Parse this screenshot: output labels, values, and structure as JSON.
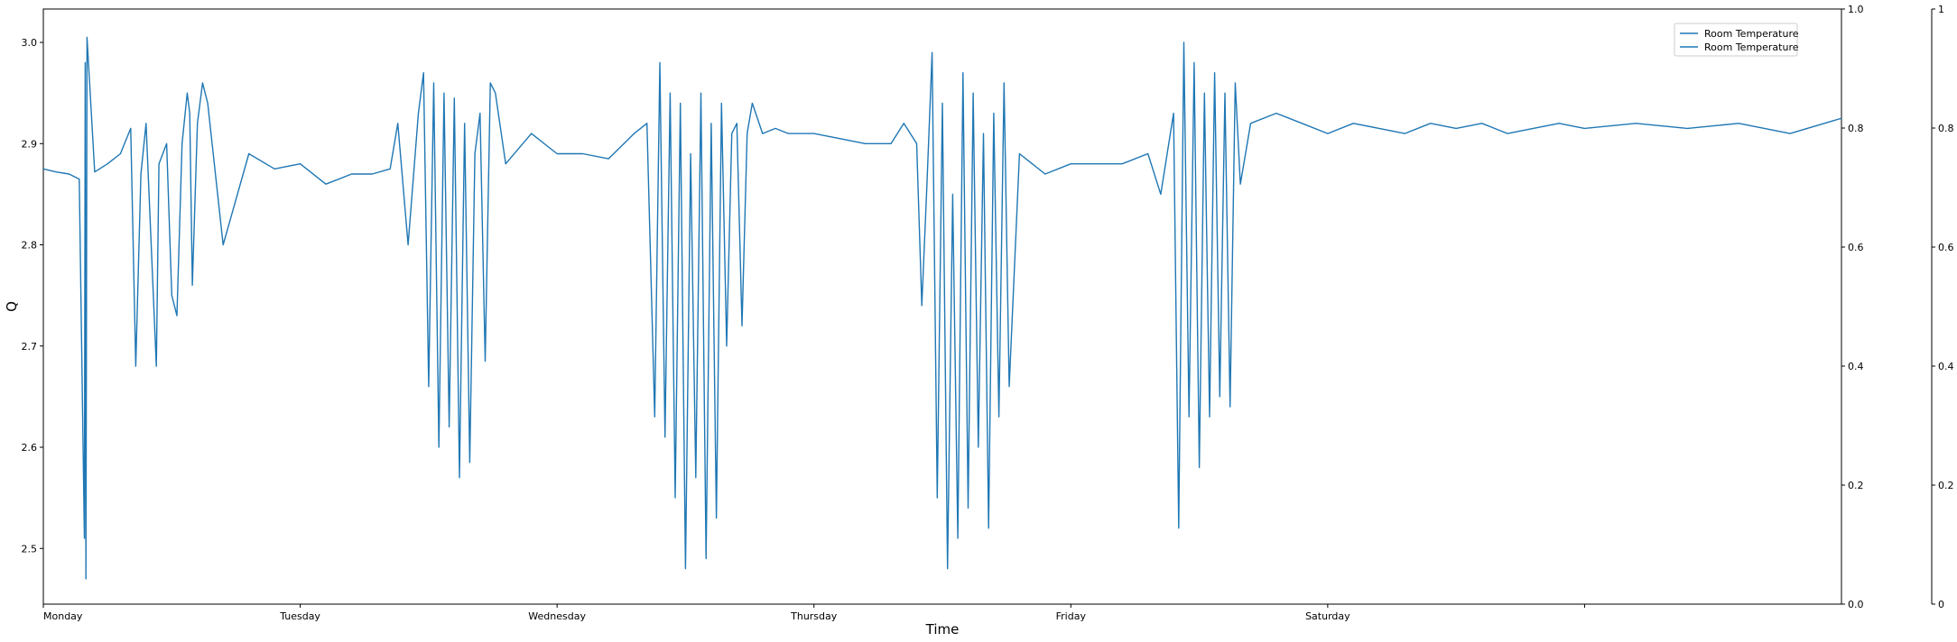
{
  "chart_data": {
    "type": "line",
    "title": "",
    "xlabel": "Time",
    "ylabel": "Q",
    "ylim": [
      2.445,
      3.033
    ],
    "yticks": [
      "2.5",
      "2.6",
      "2.7",
      "2.8",
      "2.9",
      "3.0"
    ],
    "xlim": [
      0,
      7
    ],
    "xticks": [
      "Monday",
      "Tuesday",
      "Wednesday",
      "Thursday",
      "Friday",
      "Saturday",
      ""
    ],
    "secondary_yticks": [
      "0.0",
      "0.2",
      "0.4",
      "0.6",
      "0.8",
      "1.0"
    ],
    "tertiary_yticks": [
      "0",
      "0.2",
      "0.4",
      "0.6",
      "0.8",
      "1"
    ],
    "line_color": "#1f77b4",
    "legend_position": "upper-right",
    "series": [
      {
        "name": "Room Temperature",
        "x": [
          0,
          0.05,
          0.1,
          0.14,
          0.16,
          0.163,
          0.166,
          0.17,
          0.2,
          0.25,
          0.3,
          0.34,
          0.36,
          0.38,
          0.4,
          0.44,
          0.45,
          0.48,
          0.5,
          0.52,
          0.54,
          0.56,
          0.57,
          0.58,
          0.6,
          0.62,
          0.64,
          0.7,
          0.8,
          0.9,
          1.0,
          1.1,
          1.2,
          1.28,
          1.35,
          1.38,
          1.42,
          1.46,
          1.48,
          1.5,
          1.52,
          1.54,
          1.56,
          1.58,
          1.6,
          1.62,
          1.64,
          1.66,
          1.68,
          1.7,
          1.72,
          1.74,
          1.76,
          1.8,
          1.9,
          2.0,
          2.1,
          2.2,
          2.3,
          2.35,
          2.38,
          2.4,
          2.42,
          2.44,
          2.46,
          2.48,
          2.5,
          2.52,
          2.54,
          2.56,
          2.58,
          2.6,
          2.62,
          2.64,
          2.66,
          2.68,
          2.7,
          2.72,
          2.74,
          2.76,
          2.8,
          2.85,
          2.9,
          3.0,
          3.1,
          3.2,
          3.3,
          3.35,
          3.4,
          3.42,
          3.44,
          3.46,
          3.48,
          3.5,
          3.52,
          3.54,
          3.56,
          3.58,
          3.6,
          3.62,
          3.64,
          3.66,
          3.68,
          3.7,
          3.72,
          3.74,
          3.76,
          3.8,
          3.9,
          4.0,
          4.1,
          4.2,
          4.3,
          4.35,
          4.4,
          4.42,
          4.44,
          4.46,
          4.48,
          4.5,
          4.52,
          4.54,
          4.56,
          4.58,
          4.6,
          4.62,
          4.64,
          4.66,
          4.7,
          4.8,
          4.9,
          5.0,
          5.1,
          5.2,
          5.3,
          5.4,
          5.5,
          5.6,
          5.7,
          5.8,
          5.9,
          6.0,
          6.2,
          6.4,
          6.6,
          6.8,
          7.0
        ],
        "y": [
          2.875,
          2.872,
          2.87,
          2.865,
          2.51,
          2.98,
          2.47,
          3.005,
          2.872,
          2.88,
          2.89,
          2.915,
          2.68,
          2.87,
          2.92,
          2.68,
          2.88,
          2.9,
          2.75,
          2.73,
          2.9,
          2.95,
          2.93,
          2.76,
          2.92,
          2.96,
          2.94,
          2.8,
          2.89,
          2.875,
          2.88,
          2.86,
          2.87,
          2.87,
          2.875,
          2.92,
          2.8,
          2.93,
          2.97,
          2.66,
          2.96,
          2.6,
          2.95,
          2.62,
          2.945,
          2.57,
          2.92,
          2.585,
          2.89,
          2.93,
          2.685,
          2.96,
          2.95,
          2.88,
          2.91,
          2.89,
          2.89,
          2.885,
          2.91,
          2.92,
          2.63,
          2.98,
          2.61,
          2.95,
          2.55,
          2.94,
          2.48,
          2.89,
          2.57,
          2.95,
          2.49,
          2.92,
          2.53,
          2.94,
          2.7,
          2.91,
          2.92,
          2.72,
          2.91,
          2.94,
          2.91,
          2.915,
          2.91,
          2.91,
          2.905,
          2.9,
          2.9,
          2.92,
          2.9,
          2.74,
          2.86,
          2.99,
          2.55,
          2.94,
          2.48,
          2.85,
          2.51,
          2.97,
          2.54,
          2.95,
          2.6,
          2.91,
          2.52,
          2.93,
          2.63,
          2.96,
          2.66,
          2.89,
          2.87,
          2.88,
          2.88,
          2.88,
          2.89,
          2.85,
          2.93,
          2.52,
          3.0,
          2.63,
          2.98,
          2.58,
          2.95,
          2.63,
          2.97,
          2.65,
          2.95,
          2.64,
          2.96,
          2.86,
          2.92,
          2.93,
          2.92,
          2.91,
          2.92,
          2.915,
          2.91,
          2.92,
          2.915,
          2.92,
          2.91,
          2.915,
          2.92,
          2.915,
          2.92,
          2.915,
          2.92,
          2.91,
          2.925
        ]
      },
      {
        "name": "Room Temperature",
        "x": [],
        "y": []
      }
    ]
  }
}
